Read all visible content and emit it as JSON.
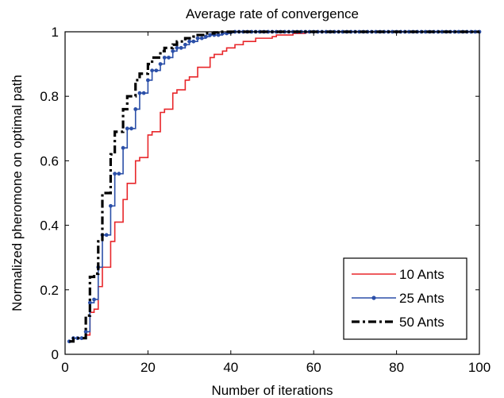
{
  "chart_data": {
    "type": "line",
    "title": "Average rate of convergence",
    "xlabel": "Number of iterations",
    "ylabel": "Normalized pheromone on optimal path",
    "xlim": [
      0,
      100
    ],
    "ylim": [
      0,
      1
    ],
    "xticks": [
      0,
      20,
      40,
      60,
      80,
      100
    ],
    "yticks": [
      0,
      0.2,
      0.4,
      0.6,
      0.8,
      1
    ],
    "xtick_labels": [
      "0",
      "20",
      "40",
      "60",
      "80",
      "100"
    ],
    "ytick_labels": [
      "0",
      "0.2",
      "0.4",
      "0.6",
      "0.8",
      "1"
    ],
    "grid": false,
    "legend_position": "bottom-right",
    "step_style": "stairs",
    "series": [
      {
        "name": "10 Ants",
        "color": "#e8262a",
        "line_style": "solid",
        "marker": "none",
        "x": [
          1,
          2,
          3,
          4,
          5,
          6,
          7,
          8,
          9,
          10,
          11,
          12,
          13,
          14,
          15,
          16,
          17,
          18,
          19,
          20,
          21,
          22,
          23,
          24,
          25,
          26,
          27,
          28,
          29,
          30,
          31,
          32,
          33,
          34,
          35,
          36,
          37,
          38,
          39,
          40,
          41,
          42,
          43,
          44,
          45,
          46,
          47,
          48,
          49,
          50,
          51,
          52,
          53,
          54,
          55,
          56,
          57,
          58,
          59,
          60,
          62,
          65,
          70,
          75,
          80,
          85,
          90,
          95,
          100
        ],
        "values": [
          0.04,
          0.05,
          0.05,
          0.05,
          0.06,
          0.13,
          0.14,
          0.21,
          0.27,
          0.27,
          0.35,
          0.41,
          0.41,
          0.48,
          0.53,
          0.53,
          0.6,
          0.61,
          0.61,
          0.68,
          0.69,
          0.69,
          0.75,
          0.76,
          0.76,
          0.81,
          0.82,
          0.82,
          0.85,
          0.86,
          0.86,
          0.89,
          0.89,
          0.89,
          0.92,
          0.93,
          0.93,
          0.94,
          0.95,
          0.95,
          0.96,
          0.96,
          0.97,
          0.97,
          0.97,
          0.98,
          0.98,
          0.98,
          0.98,
          0.985,
          0.99,
          0.99,
          0.99,
          0.99,
          0.995,
          0.995,
          0.995,
          0.998,
          0.999,
          1,
          1,
          1,
          1,
          1,
          1,
          1,
          1,
          1,
          1
        ]
      },
      {
        "name": "25 Ants",
        "color": "#2b4fa8",
        "line_style": "solid",
        "marker": "dot",
        "x": [
          1,
          2,
          3,
          4,
          5,
          6,
          7,
          8,
          9,
          10,
          11,
          12,
          13,
          14,
          15,
          16,
          17,
          18,
          19,
          20,
          21,
          22,
          23,
          24,
          25,
          26,
          27,
          28,
          29,
          30,
          31,
          32,
          33,
          34,
          35,
          36,
          37,
          38,
          39,
          40,
          41,
          42,
          43,
          44,
          45,
          46,
          47,
          48,
          49,
          50,
          51,
          52,
          53,
          54,
          55,
          56,
          57,
          58,
          59,
          60,
          61,
          62,
          63,
          64,
          65,
          66,
          67,
          68,
          69,
          70,
          71,
          72,
          73,
          74,
          75,
          76,
          77,
          78,
          79,
          80,
          81,
          82,
          83,
          84,
          85,
          86,
          87,
          88,
          89,
          90,
          91,
          92,
          93,
          94,
          95,
          96,
          97,
          98,
          99,
          100
        ],
        "values": [
          0.04,
          0.05,
          0.05,
          0.05,
          0.07,
          0.16,
          0.17,
          0.27,
          0.37,
          0.37,
          0.46,
          0.56,
          0.56,
          0.64,
          0.7,
          0.7,
          0.76,
          0.81,
          0.81,
          0.85,
          0.88,
          0.88,
          0.9,
          0.92,
          0.92,
          0.94,
          0.95,
          0.95,
          0.96,
          0.97,
          0.97,
          0.98,
          0.98,
          0.985,
          0.99,
          0.99,
          0.99,
          0.995,
          0.995,
          0.998,
          1,
          1,
          1,
          1,
          1,
          1,
          1,
          1,
          1,
          1,
          1,
          1,
          1,
          1,
          1,
          1,
          1,
          1,
          1,
          1,
          1,
          1,
          1,
          1,
          1,
          1,
          1,
          1,
          1,
          1,
          1,
          1,
          1,
          1,
          1,
          1,
          1,
          1,
          1,
          1,
          1,
          1,
          1,
          1,
          1,
          1,
          1,
          1,
          1,
          1,
          1,
          1,
          1,
          1,
          1,
          1,
          1,
          1,
          1,
          1
        ]
      },
      {
        "name": "50 Ants",
        "color": "#000000",
        "line_style": "dashdot",
        "marker": "none",
        "x": [
          1,
          2,
          3,
          4,
          5,
          6,
          7,
          8,
          9,
          10,
          11,
          12,
          13,
          14,
          15,
          16,
          17,
          18,
          19,
          20,
          21,
          22,
          23,
          24,
          25,
          26,
          27,
          28,
          29,
          30,
          31,
          32,
          33,
          34,
          35,
          36,
          37,
          38,
          39,
          40,
          45,
          50,
          60,
          70,
          80,
          90,
          100
        ],
        "values": [
          0.04,
          0.05,
          0.05,
          0.05,
          0.12,
          0.24,
          0.25,
          0.35,
          0.5,
          0.5,
          0.62,
          0.69,
          0.69,
          0.76,
          0.8,
          0.8,
          0.85,
          0.87,
          0.87,
          0.9,
          0.92,
          0.92,
          0.94,
          0.95,
          0.95,
          0.96,
          0.97,
          0.97,
          0.98,
          0.98,
          0.985,
          0.99,
          0.99,
          0.995,
          0.995,
          0.998,
          1,
          1,
          1,
          1,
          1,
          1,
          1,
          1,
          1,
          1,
          1
        ]
      }
    ]
  }
}
